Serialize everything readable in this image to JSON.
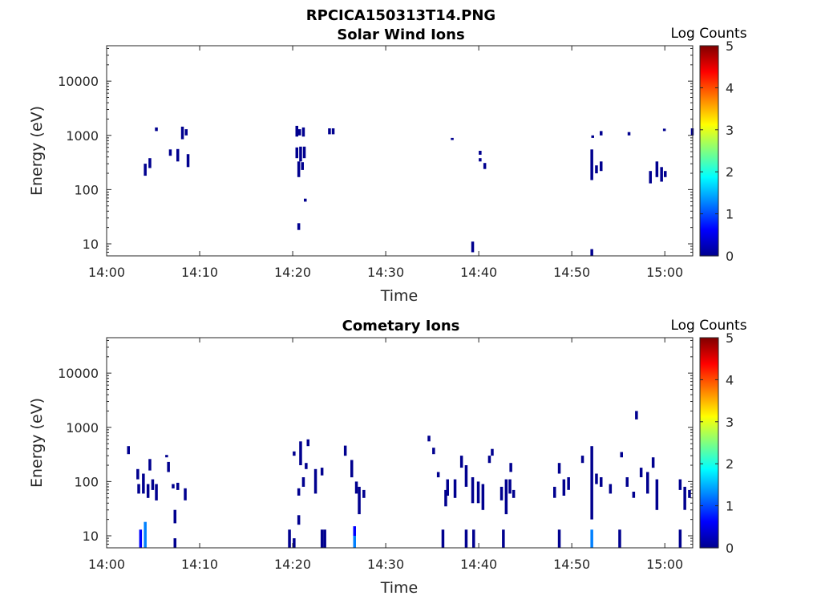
{
  "figure_title": "RPCICA150313T14.PNG",
  "colormap": [
    "#00008f",
    "#0000ff",
    "#0080ff",
    "#00ffff",
    "#80ff80",
    "#ffff00",
    "#ff8000",
    "#ff0000",
    "#800000"
  ],
  "chart_data": [
    {
      "type": "heatmap",
      "title": "Solar Wind Ions",
      "xlabel": "Time",
      "ylabel": "Energy (eV)",
      "x_scale": "time",
      "y_scale": "log",
      "xlim": [
        "14:00",
        "15:03"
      ],
      "ylim": [
        6,
        45000
      ],
      "x_ticks": [
        "14:00",
        "14:10",
        "14:20",
        "14:30",
        "14:40",
        "14:50",
        "15:00"
      ],
      "y_ticks": [
        "10",
        "100",
        "1000",
        "10000"
      ],
      "colorbar": {
        "label": "Log Counts",
        "range": [
          0,
          5
        ],
        "ticks": [
          "0",
          "1",
          "2",
          "3",
          "4",
          "5"
        ]
      },
      "cells": [
        [
          "14:04",
          180,
          300,
          0.3
        ],
        [
          "14:04.5",
          250,
          380,
          0.3
        ],
        [
          "14:05.2",
          1200,
          1400,
          0.2
        ],
        [
          "14:06.7",
          420,
          550,
          0.3
        ],
        [
          "14:07.5",
          330,
          560,
          0.3
        ],
        [
          "14:08",
          850,
          1450,
          0.5
        ],
        [
          "14:08.4",
          1000,
          1300,
          0.5
        ],
        [
          "14:08.6",
          260,
          450,
          0.3
        ],
        [
          "14:20.3",
          950,
          1500,
          0.5
        ],
        [
          "14:20.6",
          1000,
          1300,
          0.5
        ],
        [
          "14:21",
          950,
          1400,
          0.5
        ],
        [
          "14:20.3",
          380,
          600,
          0.4
        ],
        [
          "14:20.7",
          330,
          620,
          0.3
        ],
        [
          "14:21.1",
          380,
          620,
          0.3
        ],
        [
          "14:20.5",
          170,
          330,
          0.2
        ],
        [
          "14:20.9",
          230,
          320,
          0.2
        ],
        [
          "14:21.2",
          60,
          68,
          0.1
        ],
        [
          "14:20.5",
          18,
          24,
          0.1
        ],
        [
          "14:23.8",
          1050,
          1350,
          0.2
        ],
        [
          "14:24.2",
          1050,
          1350,
          0.2
        ],
        [
          "14:37",
          820,
          900,
          0.1
        ],
        [
          "14:39.2",
          7,
          11,
          0.1
        ],
        [
          "14:40",
          440,
          520,
          0.1
        ],
        [
          "14:40",
          330,
          380,
          0.1
        ],
        [
          "14:40.5",
          240,
          310,
          0.2
        ],
        [
          "14:52",
          150,
          550,
          0.3
        ],
        [
          "14:52",
          6,
          8,
          0.1
        ],
        [
          "14:52.5",
          200,
          280,
          0.2
        ],
        [
          "14:53",
          220,
          330,
          0.2
        ],
        [
          "14:52.1",
          900,
          1000,
          0.1
        ],
        [
          "14:53",
          1000,
          1200,
          0.1
        ],
        [
          "14:56",
          1000,
          1150,
          0.1
        ],
        [
          "14:58.3",
          130,
          220,
          0.3
        ],
        [
          "14:59",
          170,
          330,
          0.3
        ],
        [
          "14:59.5",
          140,
          260,
          0.3
        ],
        [
          "14:59.9",
          170,
          220,
          0.3
        ],
        [
          "14:59.8",
          1200,
          1330,
          0.1
        ],
        [
          "15:02.8",
          1000,
          1350,
          0.2
        ]
      ]
    },
    {
      "type": "heatmap",
      "title": "Cometary Ions",
      "xlabel": "Time",
      "ylabel": "Energy (eV)",
      "x_scale": "time",
      "y_scale": "log",
      "xlim": [
        "14:00",
        "15:03"
      ],
      "ylim": [
        6,
        45000
      ],
      "x_ticks": [
        "14:00",
        "14:10",
        "14:20",
        "14:30",
        "14:40",
        "14:50",
        "15:00"
      ],
      "y_ticks": [
        "10",
        "100",
        "1000",
        "10000"
      ],
      "colorbar": {
        "label": "Log Counts",
        "range": [
          0,
          5
        ],
        "ticks": [
          "0",
          "1",
          "2",
          "3",
          "4",
          "5"
        ]
      },
      "cells": [
        [
          "14:02.2",
          320,
          450,
          0.3
        ],
        [
          "14:03.2",
          110,
          170,
          0.2
        ],
        [
          "14:03.3",
          60,
          90,
          0.3
        ],
        [
          "14:03.8",
          60,
          140,
          0.5
        ],
        [
          "14:04.3",
          50,
          90,
          0.5
        ],
        [
          "14:04.5",
          160,
          260,
          0.2
        ],
        [
          "14:04.8",
          70,
          110,
          0.3
        ],
        [
          "14:05.2",
          45,
          90,
          0.5
        ],
        [
          "14:06.3",
          280,
          310,
          0.2
        ],
        [
          "14:06.5",
          150,
          230,
          0.4
        ],
        [
          "14:07",
          75,
          90,
          0.2
        ],
        [
          "14:07.5",
          70,
          95,
          0.3
        ],
        [
          "14:08.3",
          45,
          75,
          0.4
        ],
        [
          "14:07.2",
          17,
          30,
          0.4
        ],
        [
          "14:07.2",
          6,
          9,
          0.4
        ],
        [
          "14:03.5",
          6,
          13,
          1.0
        ],
        [
          "14:04",
          6,
          18,
          1.3
        ],
        [
          "14:20",
          300,
          360,
          0.2
        ],
        [
          "14:20.7",
          200,
          550,
          0.3
        ],
        [
          "14:21.5",
          450,
          600,
          0.3
        ],
        [
          "14:20.5",
          55,
          75,
          0.2
        ],
        [
          "14:21",
          80,
          120,
          0.2
        ],
        [
          "14:21.3",
          170,
          220,
          0.2
        ],
        [
          "14:22.3",
          60,
          170,
          0.3
        ],
        [
          "14:23",
          130,
          180,
          0.2
        ],
        [
          "14:20.5",
          16,
          24,
          0.2
        ],
        [
          "14:19.5",
          6,
          13,
          0.5
        ],
        [
          "14:20",
          6,
          9,
          0.5
        ],
        [
          "14:23",
          6,
          13,
          0.5
        ],
        [
          "14:23.3",
          6,
          13,
          0.5
        ],
        [
          "14:25.5",
          300,
          460,
          0.2
        ],
        [
          "14:26.2",
          120,
          250,
          0.3
        ],
        [
          "14:26.7",
          60,
          100,
          0.2
        ],
        [
          "14:27",
          25,
          80,
          0.4
        ],
        [
          "14:27.5",
          50,
          70,
          0.2
        ],
        [
          "14:26.5",
          6,
          10,
          1.4
        ],
        [
          "14:26.5",
          10,
          15,
          0.6
        ],
        [
          "14:34.5",
          550,
          700,
          0.2
        ],
        [
          "14:35",
          320,
          420,
          0.2
        ],
        [
          "14:35.5",
          120,
          150,
          0.2
        ],
        [
          "14:36.3",
          35,
          70,
          0.3
        ],
        [
          "14:36.5",
          55,
          110,
          0.3
        ],
        [
          "14:37.3",
          50,
          110,
          0.2
        ],
        [
          "14:38",
          180,
          300,
          0.3
        ],
        [
          "14:38.5",
          80,
          200,
          0.5
        ],
        [
          "14:39.2",
          40,
          120,
          0.4
        ],
        [
          "14:39.8",
          40,
          100,
          0.5
        ],
        [
          "14:40.3",
          30,
          90,
          0.4
        ],
        [
          "14:41",
          220,
          300,
          0.2
        ],
        [
          "14:41.3",
          300,
          400,
          0.2
        ],
        [
          "14:42.3",
          45,
          80,
          0.2
        ],
        [
          "14:42.8",
          25,
          110,
          0.3
        ],
        [
          "14:43.2",
          60,
          110,
          0.3
        ],
        [
          "14:43.6",
          50,
          70,
          0.2
        ],
        [
          "14:43.3",
          150,
          220,
          0.2
        ],
        [
          "14:36",
          6,
          13,
          0.5
        ],
        [
          "14:38.5",
          6,
          13,
          0.5
        ],
        [
          "14:39.3",
          6,
          13,
          0.5
        ],
        [
          "14:42.5",
          6,
          13,
          0.5
        ],
        [
          "14:48",
          50,
          80,
          0.2
        ],
        [
          "14:48.5",
          140,
          220,
          0.2
        ],
        [
          "14:49",
          55,
          110,
          0.3
        ],
        [
          "14:49.5",
          70,
          120,
          0.3
        ],
        [
          "14:51",
          220,
          300,
          0.2
        ],
        [
          "14:52",
          20,
          450,
          0.3
        ],
        [
          "14:52.5",
          90,
          140,
          0.4
        ],
        [
          "14:53",
          80,
          120,
          0.3
        ],
        [
          "14:54",
          60,
          90,
          0.3
        ],
        [
          "14:55.2",
          280,
          350,
          0.2
        ],
        [
          "14:55.8",
          80,
          120,
          0.2
        ],
        [
          "14:56.5",
          50,
          65,
          0.2
        ],
        [
          "14:57.3",
          120,
          180,
          0.3
        ],
        [
          "14:58",
          60,
          150,
          0.3
        ],
        [
          "14:58.6",
          180,
          280,
          0.3
        ],
        [
          "14:59",
          30,
          110,
          0.3
        ],
        [
          "15:01.5",
          70,
          110,
          0.2
        ],
        [
          "15:02",
          30,
          80,
          0.3
        ],
        [
          "15:02.5",
          50,
          70,
          0.2
        ],
        [
          "14:56.8",
          1400,
          2000,
          0.2
        ],
        [
          "14:48.5",
          6,
          13,
          0.5
        ],
        [
          "14:52",
          6,
          13,
          1.5
        ],
        [
          "14:55",
          6,
          13,
          0.5
        ],
        [
          "15:01.5",
          6,
          13,
          0.5
        ]
      ]
    }
  ]
}
